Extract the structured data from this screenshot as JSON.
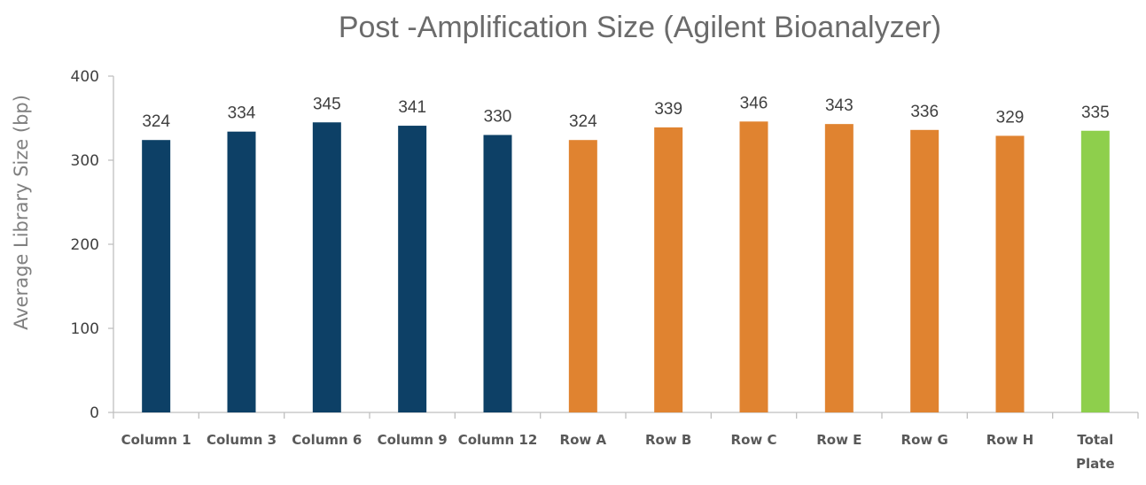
{
  "chart_data": {
    "type": "bar",
    "title": "Post -Amplification Size (Agilent Bioanalyzer)",
    "xlabel": "",
    "ylabel": "Average Library Size (bp)",
    "ylim": [
      0,
      400
    ],
    "yticks": [
      0,
      100,
      200,
      300,
      400
    ],
    "grid": false,
    "legend": "none",
    "categories": [
      "Column 1",
      "Column 3",
      "Column 6",
      "Column 9",
      "Column 12",
      "Row A",
      "Row B",
      "Row C",
      "Row E",
      "Row G",
      "Row H",
      "Total Plate"
    ],
    "values": [
      324,
      334,
      345,
      341,
      330,
      324,
      339,
      346,
      343,
      336,
      329,
      335
    ],
    "colors": [
      "#0d4066",
      "#0d4066",
      "#0d4066",
      "#0d4066",
      "#0d4066",
      "#e08330",
      "#e08330",
      "#e08330",
      "#e08330",
      "#e08330",
      "#e08330",
      "#8ecf4c"
    ]
  }
}
